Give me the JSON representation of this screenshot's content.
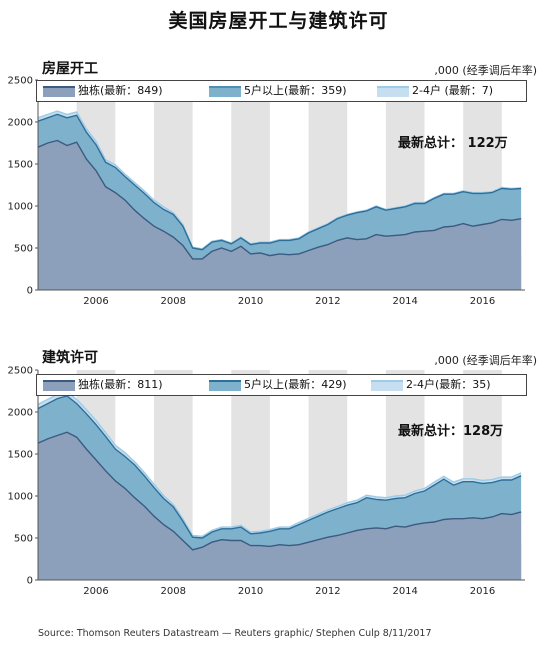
{
  "title": "美国房屋开工与建筑许可",
  "source": "Source: Thomson Reuters Datastream — Reuters graphic/ Stephen Culp 8/11/2017",
  "colors": {
    "single": "#8ca0bb",
    "multi": "#7eb1cc",
    "two4": "#c5dff0",
    "shade": "#e3e3e3"
  },
  "charts": [
    {
      "panel_title": "房屋开工",
      "unit": ",000 (经季调后年率)",
      "legend": [
        "独栋(最新：849)",
        "5户以上(最新：359)",
        "2-4户 (最新：7)"
      ],
      "total_label": "最新总计： 122万"
    },
    {
      "panel_title": "建筑许可",
      "unit": ",000 (经季调后年率)",
      "legend": [
        "独栋(最新：811)",
        "5户以上(最新：429)",
        "2-4户(最新：35)"
      ],
      "total_label": "最新总计：128万"
    }
  ],
  "chart_data": [
    {
      "type": "area",
      "title": "房屋开工",
      "xlim": [
        2005,
        2017.6
      ],
      "ylim": [
        0,
        2500
      ],
      "yticks": [
        0,
        500,
        1000,
        1500,
        2000,
        2500
      ],
      "xticks": [
        2006,
        2008,
        2010,
        2012,
        2014,
        2016
      ],
      "shaded_years": [
        2006,
        2008,
        2010,
        2012,
        2014,
        2016
      ],
      "x": [
        2005.0,
        2005.25,
        2005.5,
        2005.75,
        2006.0,
        2006.25,
        2006.5,
        2006.75,
        2007.0,
        2007.25,
        2007.5,
        2007.75,
        2008.0,
        2008.25,
        2008.5,
        2008.75,
        2009.0,
        2009.25,
        2009.5,
        2009.75,
        2010.0,
        2010.25,
        2010.5,
        2010.75,
        2011.0,
        2011.25,
        2011.5,
        2011.75,
        2012.0,
        2012.25,
        2012.5,
        2012.75,
        2013.0,
        2013.25,
        2013.5,
        2013.75,
        2014.0,
        2014.25,
        2014.5,
        2014.75,
        2015.0,
        2015.25,
        2015.5,
        2015.75,
        2016.0,
        2016.25,
        2016.5,
        2016.75,
        2017.0,
        2017.25,
        2017.5
      ],
      "series": [
        {
          "name": "独栋",
          "values": [
            1700,
            1750,
            1780,
            1720,
            1760,
            1560,
            1420,
            1230,
            1160,
            1070,
            950,
            850,
            760,
            700,
            630,
            530,
            370,
            370,
            460,
            500,
            460,
            520,
            430,
            440,
            410,
            430,
            420,
            430,
            470,
            510,
            540,
            590,
            620,
            600,
            610,
            660,
            640,
            650,
            660,
            690,
            700,
            710,
            750,
            760,
            790,
            760,
            780,
            800,
            840,
            830,
            849
          ]
        },
        {
          "name": "5户以上",
          "values": [
            310,
            300,
            310,
            330,
            320,
            320,
            310,
            290,
            300,
            280,
            300,
            300,
            280,
            260,
            270,
            230,
            130,
            110,
            110,
            90,
            90,
            100,
            110,
            120,
            150,
            160,
            170,
            180,
            210,
            220,
            240,
            260,
            270,
            320,
            330,
            330,
            310,
            320,
            330,
            340,
            330,
            380,
            390,
            380,
            380,
            390,
            370,
            360,
            370,
            370,
            359
          ]
        },
        {
          "name": "2-4户",
          "values": [
            40,
            40,
            40,
            40,
            40,
            40,
            40,
            30,
            30,
            30,
            30,
            30,
            30,
            30,
            20,
            20,
            10,
            10,
            10,
            10,
            10,
            10,
            10,
            10,
            10,
            10,
            10,
            10,
            10,
            10,
            10,
            10,
            10,
            10,
            10,
            10,
            10,
            10,
            10,
            10,
            10,
            10,
            10,
            10,
            10,
            10,
            10,
            10,
            10,
            10,
            7
          ]
        }
      ]
    },
    {
      "type": "area",
      "title": "建筑许可",
      "xlim": [
        2005,
        2017.6
      ],
      "ylim": [
        0,
        2500
      ],
      "yticks": [
        0,
        500,
        1000,
        1500,
        2000,
        2500
      ],
      "xticks": [
        2006,
        2008,
        2010,
        2012,
        2014,
        2016
      ],
      "shaded_years": [
        2006,
        2008,
        2010,
        2012,
        2014,
        2016
      ],
      "x": [
        2005.0,
        2005.25,
        2005.5,
        2005.75,
        2006.0,
        2006.25,
        2006.5,
        2006.75,
        2007.0,
        2007.25,
        2007.5,
        2007.75,
        2008.0,
        2008.25,
        2008.5,
        2008.75,
        2009.0,
        2009.25,
        2009.5,
        2009.75,
        2010.0,
        2010.25,
        2010.5,
        2010.75,
        2011.0,
        2011.25,
        2011.5,
        2011.75,
        2012.0,
        2012.25,
        2012.5,
        2012.75,
        2013.0,
        2013.25,
        2013.5,
        2013.75,
        2014.0,
        2014.25,
        2014.5,
        2014.75,
        2015.0,
        2015.25,
        2015.5,
        2015.75,
        2016.0,
        2016.25,
        2016.5,
        2016.75,
        2017.0,
        2017.25,
        2017.5
      ],
      "series": [
        {
          "name": "独栋",
          "values": [
            1630,
            1680,
            1720,
            1760,
            1700,
            1560,
            1430,
            1300,
            1180,
            1090,
            980,
            880,
            760,
            660,
            580,
            470,
            360,
            390,
            450,
            480,
            470,
            470,
            410,
            410,
            400,
            420,
            410,
            420,
            450,
            480,
            510,
            530,
            560,
            590,
            610,
            620,
            610,
            640,
            630,
            660,
            680,
            690,
            720,
            730,
            730,
            740,
            730,
            750,
            790,
            780,
            811
          ]
        },
        {
          "name": "5户以上",
          "values": [
            410,
            420,
            440,
            430,
            400,
            420,
            420,
            410,
            380,
            380,
            390,
            360,
            340,
            310,
            290,
            230,
            150,
            110,
            120,
            130,
            140,
            160,
            140,
            150,
            180,
            190,
            200,
            240,
            260,
            280,
            300,
            320,
            330,
            330,
            370,
            340,
            340,
            330,
            350,
            370,
            380,
            440,
            480,
            400,
            440,
            430,
            420,
            410,
            400,
            410,
            429
          ]
        },
        {
          "name": "2-4户",
          "values": [
            50,
            50,
            50,
            50,
            50,
            50,
            50,
            45,
            45,
            45,
            40,
            40,
            40,
            35,
            30,
            30,
            20,
            20,
            20,
            20,
            20,
            20,
            20,
            20,
            20,
            20,
            20,
            25,
            25,
            25,
            25,
            25,
            30,
            30,
            30,
            30,
            30,
            30,
            30,
            30,
            30,
            35,
            35,
            35,
            35,
            35,
            35,
            35,
            35,
            35,
            35
          ]
        }
      ]
    }
  ]
}
